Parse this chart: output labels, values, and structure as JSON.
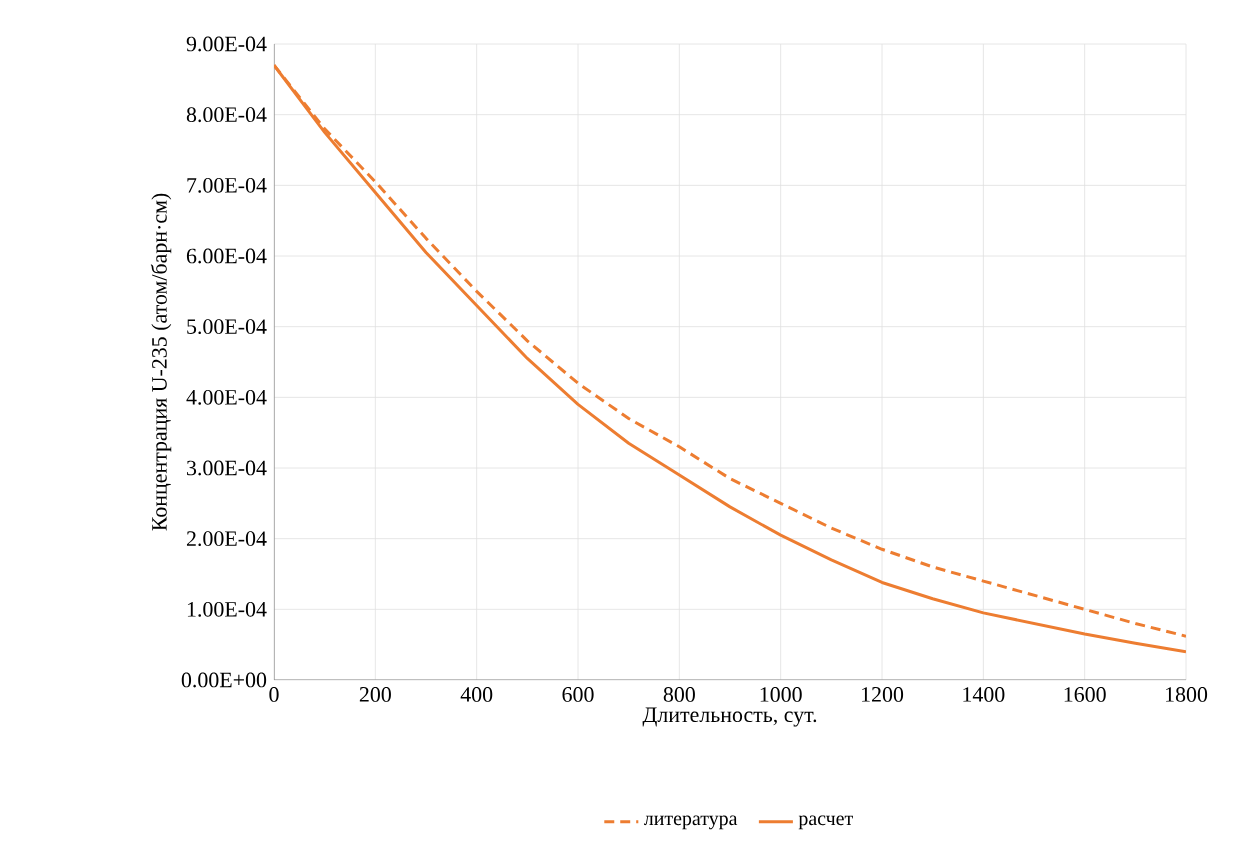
{
  "chart_data": {
    "type": "line",
    "xlabel": "Длительность, сут.",
    "ylabel": "Концентрация U-235 (атом/барн·см)",
    "x": [
      0,
      100,
      200,
      300,
      400,
      500,
      600,
      700,
      800,
      900,
      1000,
      1100,
      1200,
      1300,
      1400,
      1500,
      1600,
      1700,
      1800
    ],
    "series": [
      {
        "name": "литература",
        "color": "#ed7d31",
        "line_style": "dashed",
        "values": [
          0.00087,
          0.00078,
          0.000705,
          0.000625,
          0.00055,
          0.00048,
          0.00042,
          0.00037,
          0.00033,
          0.000285,
          0.00025,
          0.000215,
          0.000185,
          0.00016,
          0.00014,
          0.00012,
          0.0001,
          8e-05,
          6.2e-05
        ]
      },
      {
        "name": "расчет",
        "color": "#ed7d31",
        "line_style": "solid",
        "values": [
          0.00087,
          0.000775,
          0.00069,
          0.000605,
          0.00053,
          0.000455,
          0.00039,
          0.000335,
          0.00029,
          0.000245,
          0.000205,
          0.00017,
          0.000138,
          0.000115,
          9.5e-05,
          8e-05,
          6.5e-05,
          5.2e-05,
          4e-05
        ]
      }
    ],
    "xlim": [
      0,
      1800
    ],
    "xticks": [
      0,
      200,
      400,
      600,
      800,
      1000,
      1200,
      1400,
      1600,
      1800
    ],
    "ylim": [
      0,
      0.0009
    ],
    "yticks": [
      {
        "value": 0,
        "label": "0.00E+00"
      },
      {
        "value": 0.0001,
        "label": "1.00E-04"
      },
      {
        "value": 0.0002,
        "label": "2.00E-04"
      },
      {
        "value": 0.0003,
        "label": "3.00E-04"
      },
      {
        "value": 0.0004,
        "label": "4.00E-04"
      },
      {
        "value": 0.0005,
        "label": "5.00E-04"
      },
      {
        "value": 0.0006,
        "label": "6.00E-04"
      },
      {
        "value": 0.0007,
        "label": "7.00E-04"
      },
      {
        "value": 0.0008,
        "label": "8.00E-04"
      },
      {
        "value": 0.0009,
        "label": "9.00E-04"
      }
    ],
    "grid": true,
    "legend": "bottom",
    "marker": "none"
  }
}
